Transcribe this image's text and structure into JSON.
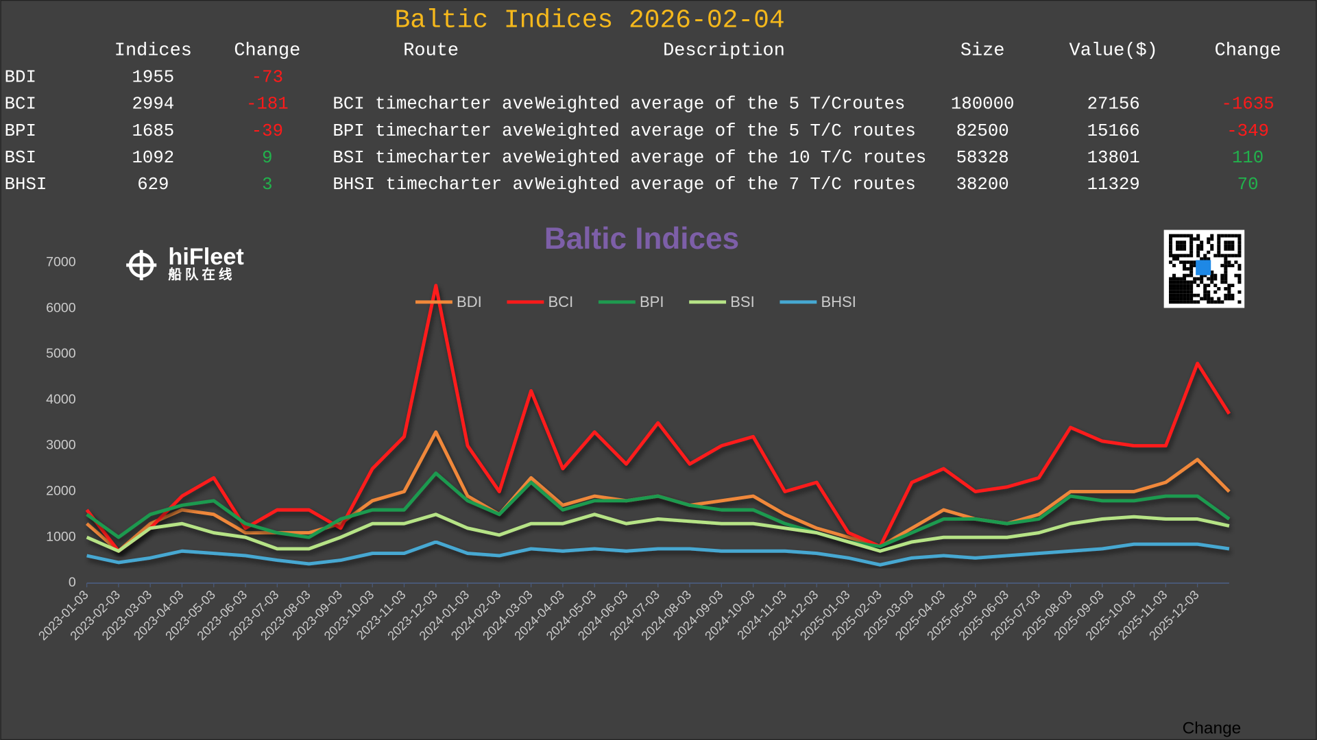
{
  "header": {
    "title": "Baltic Indices 2026-02-04"
  },
  "table": {
    "columns": [
      "Indices",
      "Change",
      "Route",
      "Description",
      "Size",
      "Value($)",
      "Change"
    ],
    "rows": [
      {
        "name": "BDI",
        "index": 1955,
        "change": -73
      },
      {
        "name": "BCI",
        "index": 2994,
        "change": -181,
        "route": "BCI timecharter ave",
        "description": "Weighted average of the 5 T/Croutes",
        "size": 180000,
        "value": 27156,
        "value_change": -1635
      },
      {
        "name": "BPI",
        "index": 1685,
        "change": -39,
        "route": "BPI timecharter ave",
        "description": "Weighted average of the 5 T/C routes",
        "size": 82500,
        "value": 15166,
        "value_change": -349
      },
      {
        "name": "BSI",
        "index": 1092,
        "change": 9,
        "route": "BSI timecharter ave",
        "description": "Weighted average of the 10 T/C routes",
        "size": 58328,
        "value": 13801,
        "value_change": 110
      },
      {
        "name": "BHSI",
        "index": 629,
        "change": 3,
        "route": "BHSI timecharter av",
        "description": "Weighted average of the 7 T/C routes",
        "size": 38200,
        "value": 11329,
        "value_change": 70
      }
    ]
  },
  "logo": {
    "name": "hiFleet",
    "subtitle": "船队在线"
  },
  "footer": {
    "label": "Change"
  },
  "chart_data": {
    "type": "line",
    "title": "Baltic Indices",
    "legend": "top",
    "categories": [
      "2023-01-03",
      "2023-02-03",
      "2023-03-03",
      "2023-04-03",
      "2023-05-03",
      "2023-06-03",
      "2023-07-03",
      "2023-08-03",
      "2023-09-03",
      "2023-10-03",
      "2023-11-03",
      "2023-12-03",
      "2024-01-03",
      "2024-02-03",
      "2024-03-03",
      "2024-04-03",
      "2024-05-03",
      "2024-06-03",
      "2024-07-03",
      "2024-08-03",
      "2024-09-03",
      "2024-10-03",
      "2024-11-03",
      "2024-12-03",
      "2025-01-03",
      "2025-02-03",
      "2025-03-03",
      "2025-04-03",
      "2025-05-03",
      "2025-06-03",
      "2025-07-03",
      "2025-08-03",
      "2025-09-03",
      "2025-10-03",
      "2025-11-03",
      "2025-12-03",
      null
    ],
    "ylim": [
      0,
      7000
    ],
    "yticks": [
      0,
      1000,
      2000,
      3000,
      4000,
      5000,
      6000,
      7000
    ],
    "series": [
      {
        "name": "BDI",
        "color": "#f0883a",
        "values": [
          1300,
          700,
          1300,
          1600,
          1500,
          1100,
          1100,
          1100,
          1300,
          1800,
          2000,
          3300,
          1900,
          1500,
          2300,
          1700,
          1900,
          1800,
          1900,
          1700,
          1800,
          1900,
          1500,
          1200,
          1000,
          800,
          1200,
          1600,
          1400,
          1300,
          1500,
          2000,
          2000,
          2000,
          2200,
          2700,
          2000
        ]
      },
      {
        "name": "BCI",
        "color": "#ff1a1a",
        "values": [
          1600,
          700,
          1200,
          1900,
          2300,
          1200,
          1600,
          1600,
          1200,
          2500,
          3200,
          6500,
          3000,
          2000,
          4200,
          2500,
          3300,
          2600,
          3500,
          2600,
          3000,
          3200,
          2000,
          2200,
          1100,
          800,
          2200,
          2500,
          2000,
          2100,
          2300,
          3400,
          3100,
          3000,
          3000,
          4800,
          3700
        ]
      },
      {
        "name": "BPI",
        "color": "#1f9a4f",
        "values": [
          1500,
          1000,
          1500,
          1700,
          1800,
          1300,
          1100,
          1000,
          1400,
          1600,
          1600,
          2400,
          1800,
          1500,
          2200,
          1600,
          1800,
          1800,
          1900,
          1700,
          1600,
          1600,
          1300,
          1100,
          900,
          800,
          1100,
          1400,
          1400,
          1300,
          1400,
          1900,
          1800,
          1800,
          1900,
          1900,
          1400
        ]
      },
      {
        "name": "BSI",
        "color": "#b6e386",
        "values": [
          1000,
          700,
          1200,
          1300,
          1100,
          1000,
          750,
          750,
          1000,
          1300,
          1300,
          1500,
          1200,
          1050,
          1300,
          1300,
          1500,
          1300,
          1400,
          1350,
          1300,
          1300,
          1200,
          1100,
          900,
          700,
          900,
          1000,
          1000,
          1000,
          1100,
          1300,
          1400,
          1450,
          1400,
          1400,
          1250
        ]
      },
      {
        "name": "BHSI",
        "color": "#46a8d2",
        "values": [
          600,
          450,
          550,
          700,
          650,
          600,
          500,
          420,
          500,
          650,
          650,
          900,
          650,
          600,
          750,
          700,
          750,
          700,
          750,
          750,
          700,
          700,
          700,
          650,
          550,
          400,
          550,
          600,
          550,
          600,
          650,
          700,
          750,
          850,
          850,
          850,
          750
        ]
      }
    ]
  }
}
